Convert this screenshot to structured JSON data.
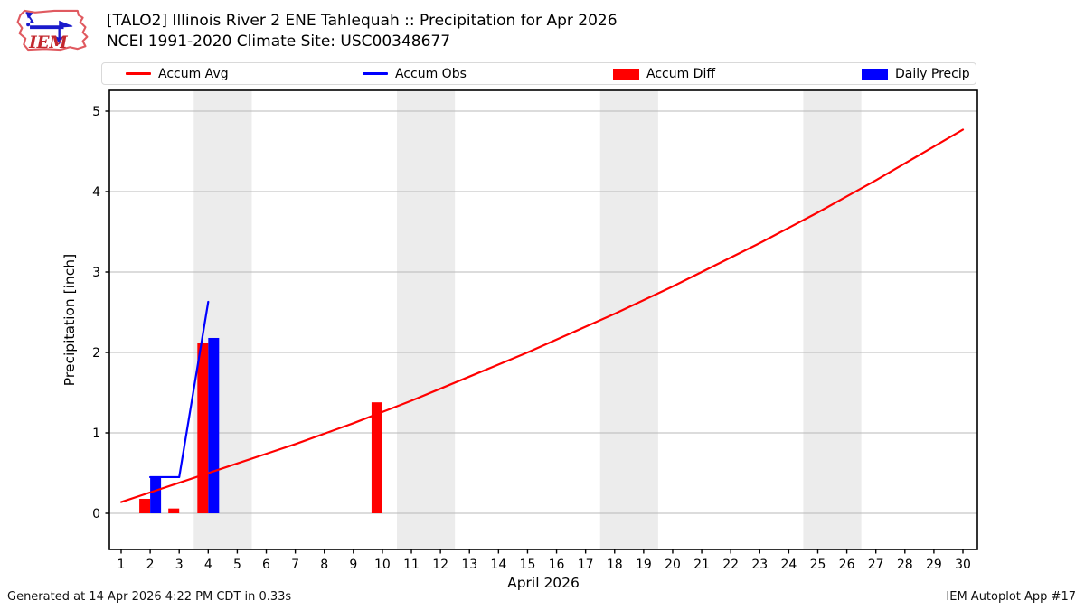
{
  "header": {
    "logo_text": "IEM",
    "title_line1": "[TALO2] Illinois River 2 ENE Tahlequah :: Precipitation for Apr 2026",
    "title_line2": "NCEI 1991-2020 Climate Site: USC00348677"
  },
  "legend": {
    "items": [
      {
        "label": "Accum Avg",
        "swatch": "line",
        "color": "#ff0000"
      },
      {
        "label": "Accum Obs",
        "swatch": "line",
        "color": "#0000ff"
      },
      {
        "label": "Accum Diff",
        "swatch": "rect",
        "color": "#ff0000"
      },
      {
        "label": "Daily Precip",
        "swatch": "rect",
        "color": "#0000ff"
      }
    ]
  },
  "chart_data": {
    "type": "line+bar",
    "title": "[TALO2] Illinois River 2 ENE Tahlequah :: Precipitation for Apr 2026",
    "subtitle": "NCEI 1991-2020 Climate Site: USC00348677",
    "xlabel": "April 2026",
    "ylabel": "Precipitation [inch]",
    "x_ticks": [
      1,
      2,
      3,
      4,
      5,
      6,
      7,
      8,
      9,
      10,
      11,
      12,
      13,
      14,
      15,
      16,
      17,
      18,
      19,
      20,
      21,
      22,
      23,
      24,
      25,
      26,
      27,
      28,
      29,
      30
    ],
    "y_ticks": [
      0,
      1,
      2,
      3,
      4,
      5
    ],
    "xlim": [
      0.55,
      30.5
    ],
    "ylim": [
      -0.45,
      5.26
    ],
    "grid": true,
    "legend_position": "top",
    "weekend_bands": [
      [
        3.5,
        5.5
      ],
      [
        10.5,
        12.5
      ],
      [
        17.5,
        19.5
      ],
      [
        24.5,
        26.5
      ]
    ],
    "series": [
      {
        "name": "Accum Avg",
        "type": "line",
        "color": "#ff0000",
        "x": [
          1,
          2,
          3,
          4,
          5,
          6,
          7,
          8,
          9,
          10,
          11,
          12,
          13,
          14,
          15,
          16,
          17,
          18,
          19,
          20,
          21,
          22,
          23,
          24,
          25,
          26,
          27,
          28,
          29,
          30
        ],
        "y": [
          0.14,
          0.26,
          0.38,
          0.5,
          0.62,
          0.74,
          0.86,
          0.99,
          1.12,
          1.26,
          1.4,
          1.55,
          1.7,
          1.85,
          2.0,
          2.16,
          2.32,
          2.48,
          2.65,
          2.82,
          3.0,
          3.18,
          3.36,
          3.55,
          3.74,
          3.94,
          4.14,
          4.35,
          4.56,
          4.77
        ]
      },
      {
        "name": "Accum Obs",
        "type": "line",
        "color": "#0000ff",
        "x": [
          2,
          3,
          4
        ],
        "y": [
          0.45,
          0.45,
          2.63
        ]
      },
      {
        "name": "Accum Diff",
        "type": "bar",
        "side": "left",
        "color": "#ff0000",
        "x": [
          2,
          3,
          4,
          10
        ],
        "y": [
          0.18,
          0.06,
          2.12,
          1.38
        ]
      },
      {
        "name": "Daily Precip",
        "type": "bar",
        "side": "right",
        "color": "#0000ff",
        "x": [
          2,
          4
        ],
        "y": [
          0.46,
          2.18
        ]
      }
    ]
  },
  "footer": {
    "left": "Generated at 14 Apr 2026 4:22 PM CDT in 0.33s",
    "right": "IEM Autoplot App #17"
  },
  "colors": {
    "weekend_band": "#ececec",
    "gridline": "#b8b8b8",
    "axis": "#000000",
    "logo_outline": "#e05a60",
    "logo_text": "#c3272e",
    "logo_glyph": "#1a1acc"
  }
}
